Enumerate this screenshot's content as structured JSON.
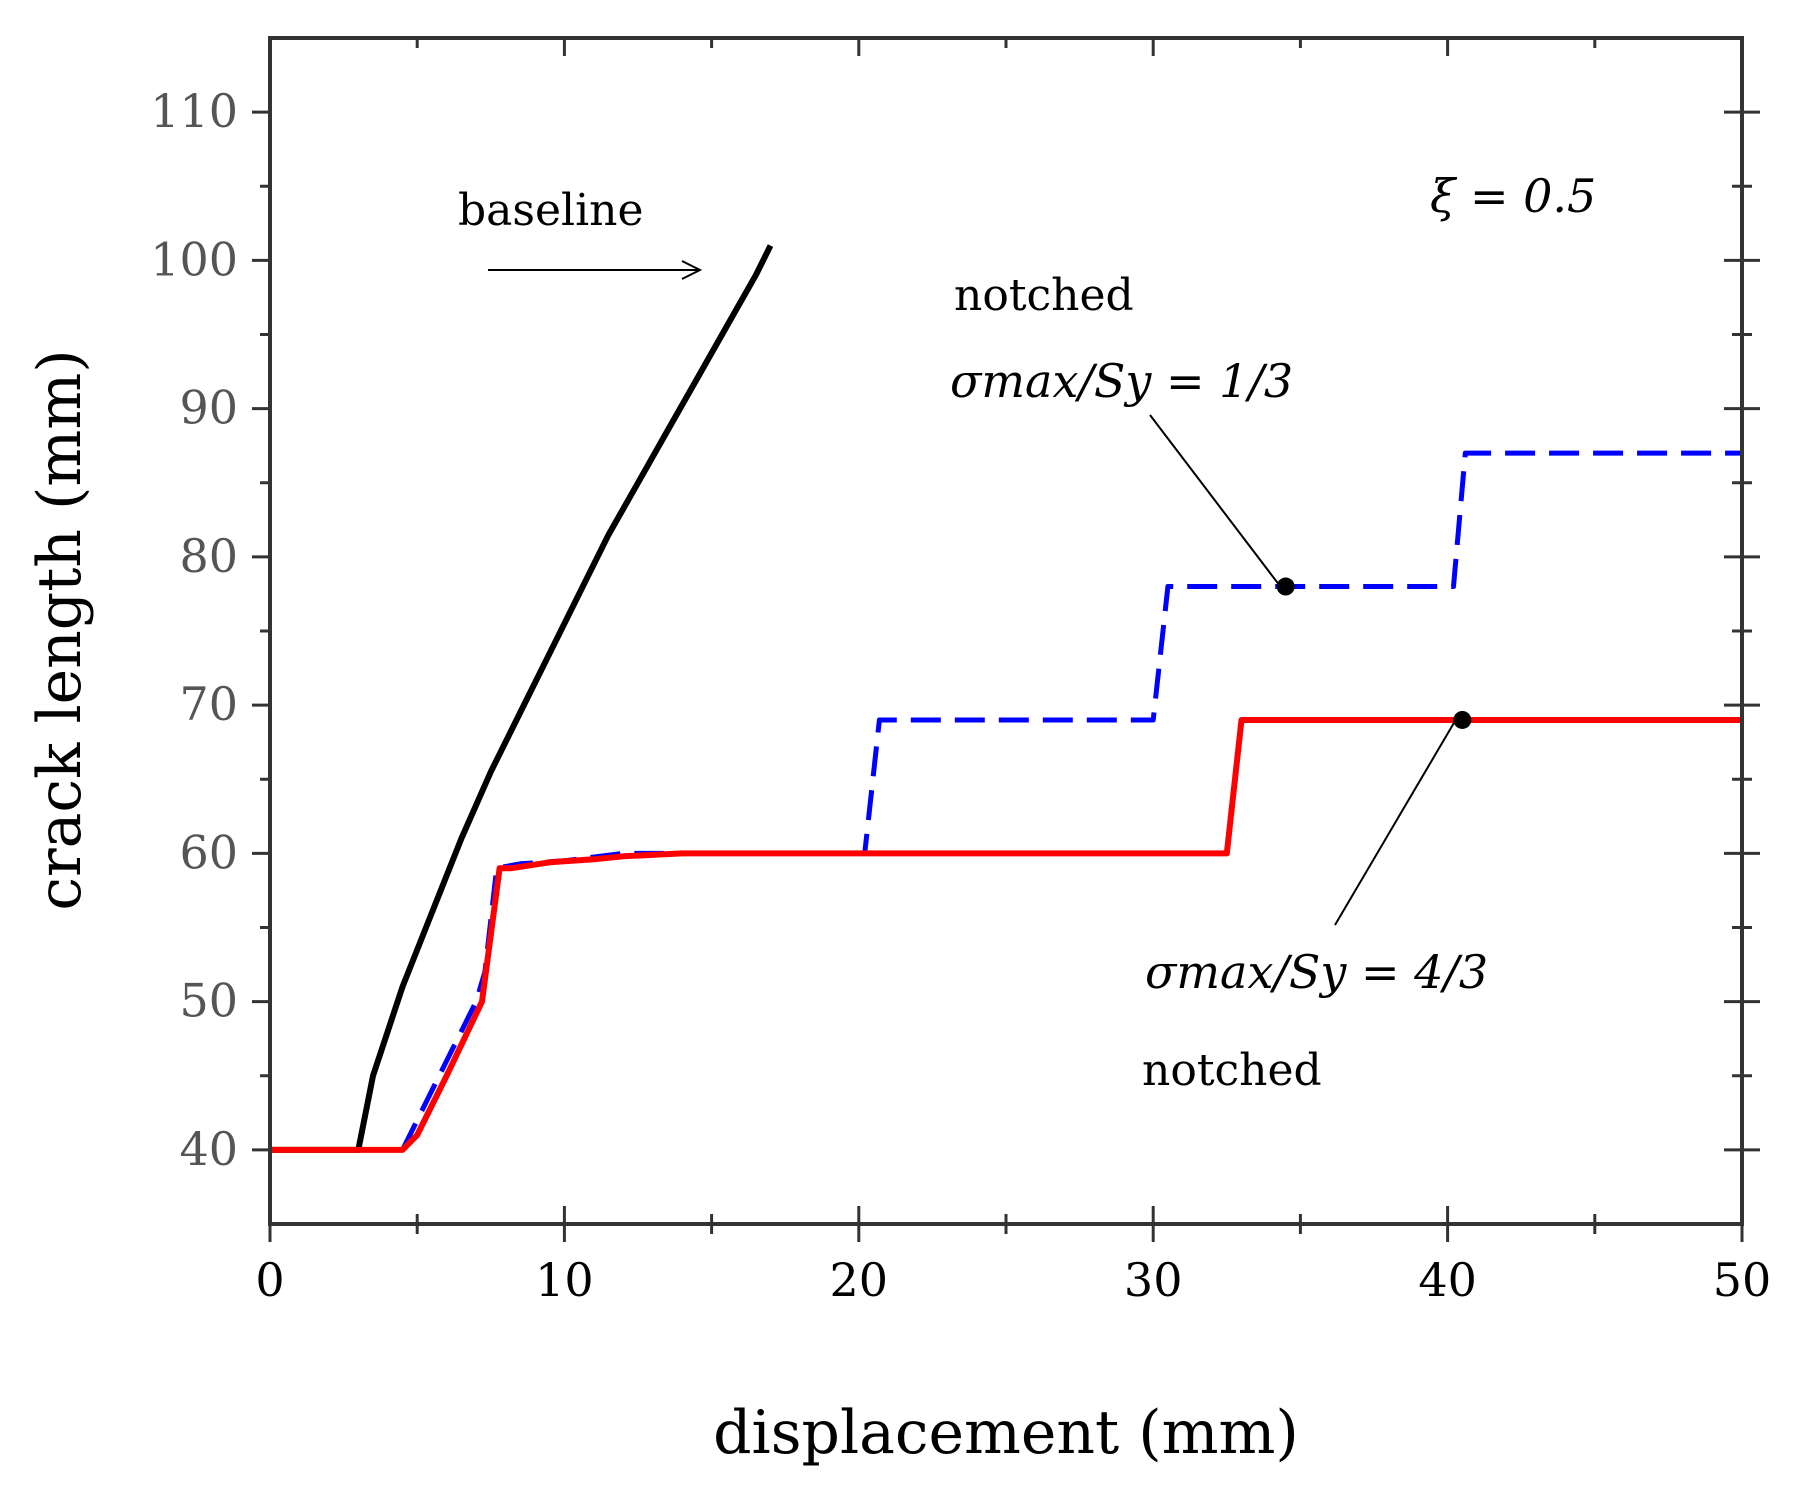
{
  "chart_data": {
    "type": "line",
    "xlabel": "displacement (mm)",
    "ylabel": "crack length (mm)",
    "xlim": [
      0,
      50
    ],
    "ylim": [
      35,
      115
    ],
    "xticks": [
      0,
      10,
      20,
      30,
      40,
      50
    ],
    "yticks": [
      40,
      50,
      60,
      70,
      80,
      90,
      100,
      110
    ],
    "xtick_labels": [
      "0",
      "10",
      "20",
      "30",
      "40",
      "50"
    ],
    "ytick_labels": [
      "40",
      "50",
      "60",
      "70",
      "80",
      "90",
      "100",
      "110"
    ],
    "grid": false,
    "series": [
      {
        "name": "baseline",
        "color": "#000000",
        "style": "solid",
        "x": [
          0,
          3.0,
          3.5,
          4.5,
          5.5,
          6.5,
          7.5,
          8.5,
          9.5,
          10.5,
          11.5,
          12.5,
          13.5,
          14.5,
          15.5,
          16.5,
          17.0
        ],
        "y": [
          40,
          40,
          45,
          51,
          56,
          61,
          65.5,
          69.5,
          73.5,
          77.5,
          81.5,
          85,
          88.5,
          92,
          95.5,
          99,
          101
        ]
      },
      {
        "name": "notched sigma_max/S_y = 1/3",
        "color": "#0000ff",
        "style": "dashed",
        "x": [
          0,
          4.5,
          5.0,
          6.0,
          7.0,
          7.3,
          7.7,
          8.5,
          10.0,
          12.0,
          15.0,
          20.2,
          20.7,
          30.0,
          30.5,
          40.2,
          40.6,
          50
        ],
        "y": [
          40,
          40,
          42,
          46,
          50,
          52,
          59,
          59.3,
          59.5,
          60,
          60,
          60,
          69,
          69,
          78,
          78,
          87,
          87
        ]
      },
      {
        "name": "notched sigma_max/S_y = 4/3",
        "color": "#ff0000",
        "style": "solid",
        "x": [
          0,
          4.5,
          5.0,
          6.0,
          7.2,
          7.8,
          8.2,
          9.5,
          11.0,
          12.0,
          14.0,
          32.5,
          33.0,
          50
        ],
        "y": [
          40,
          40,
          41,
          45,
          50,
          59,
          59,
          59.4,
          59.6,
          59.8,
          60,
          60,
          69,
          69
        ]
      }
    ],
    "markers": [
      {
        "series": "notched sigma_max/S_y = 1/3",
        "x": 34.5,
        "y": 78
      },
      {
        "series": "notched sigma_max/S_y = 4/3",
        "x": 40.5,
        "y": 69
      }
    ],
    "annotations": {
      "baseline_label": "baseline",
      "xi_label": "ξ = 0.5",
      "notched_top_label": "notched",
      "sigma_top_label": "σmax/Sy = 1/3",
      "sigma_bottom_label": "σmax/Sy = 4/3",
      "notched_bottom_label": "notched"
    }
  }
}
